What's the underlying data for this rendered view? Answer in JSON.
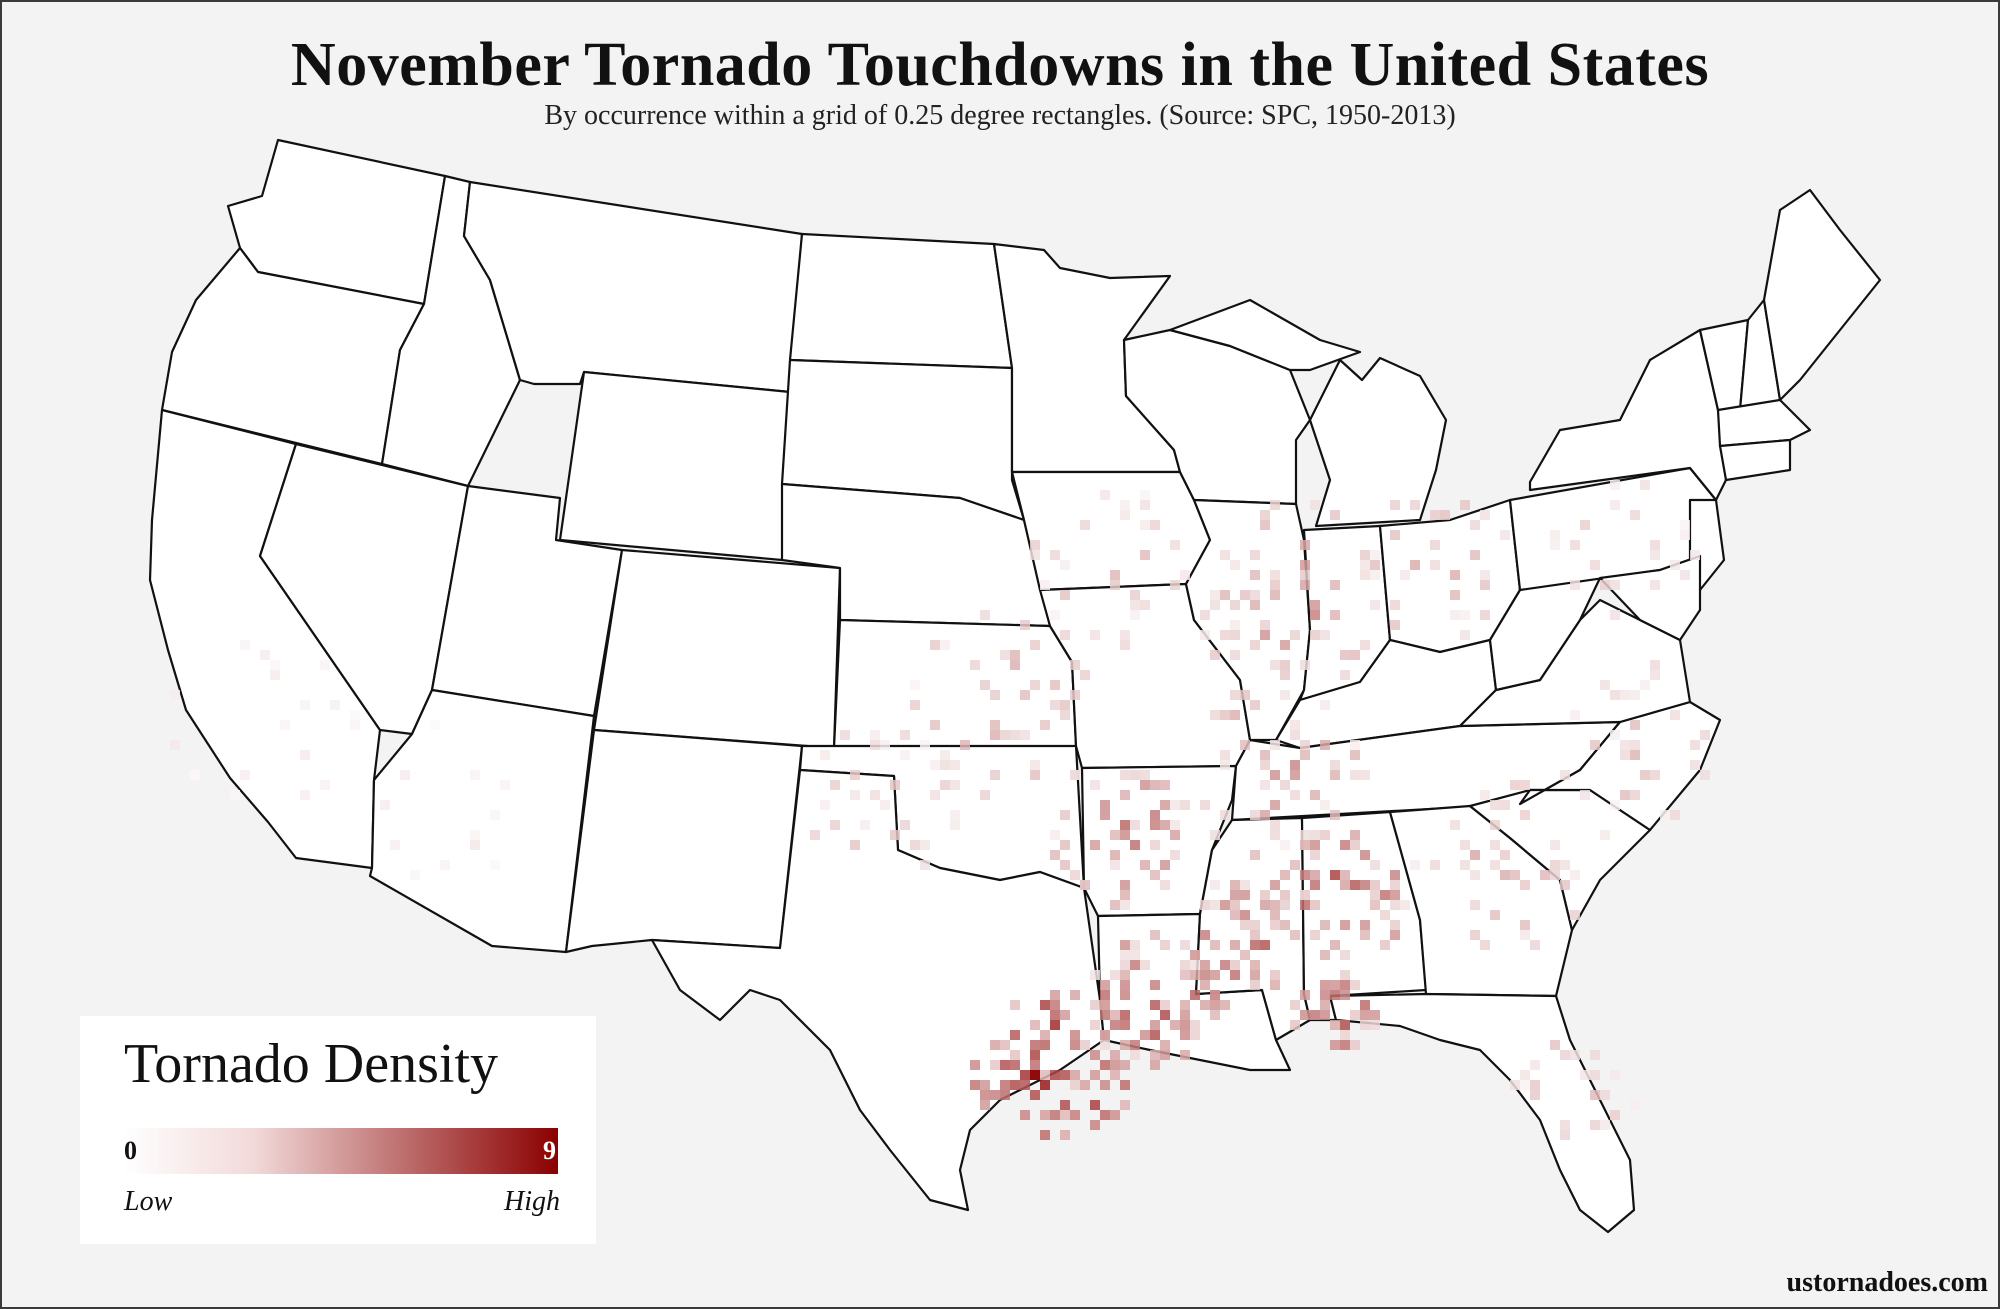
{
  "title": "November Tornado Touchdowns in the United States",
  "subtitle": "By occurrence within a grid of  0.25 degree rectangles. (Source: SPC, 1950-2013)",
  "legend": {
    "title": "Tornado Density",
    "min_value": "0",
    "max_value": "9",
    "low_label": "Low",
    "high_label": "High",
    "color_low": "#ffffff",
    "color_high": "#8b0000"
  },
  "credit": "ustornadoes.com",
  "map": {
    "projection": "conterminous United States, state outlines",
    "cell_size_degrees": 0.25,
    "hotspot_regions": [
      {
        "region": "southeast Texas near Houston",
        "intensity": 9
      },
      {
        "region": "south Louisiana",
        "intensity": 7
      },
      {
        "region": "central Mississippi",
        "intensity": 6
      },
      {
        "region": "Alabama",
        "intensity": 6
      },
      {
        "region": "Arkansas",
        "intensity": 5
      },
      {
        "region": "Florida panhandle",
        "intensity": 7
      },
      {
        "region": "Tennessee / Kentucky",
        "intensity": 4
      },
      {
        "region": "Illinois / Indiana / Ohio",
        "intensity": 4
      },
      {
        "region": "Georgia / Carolinas",
        "intensity": 3
      }
    ]
  }
}
